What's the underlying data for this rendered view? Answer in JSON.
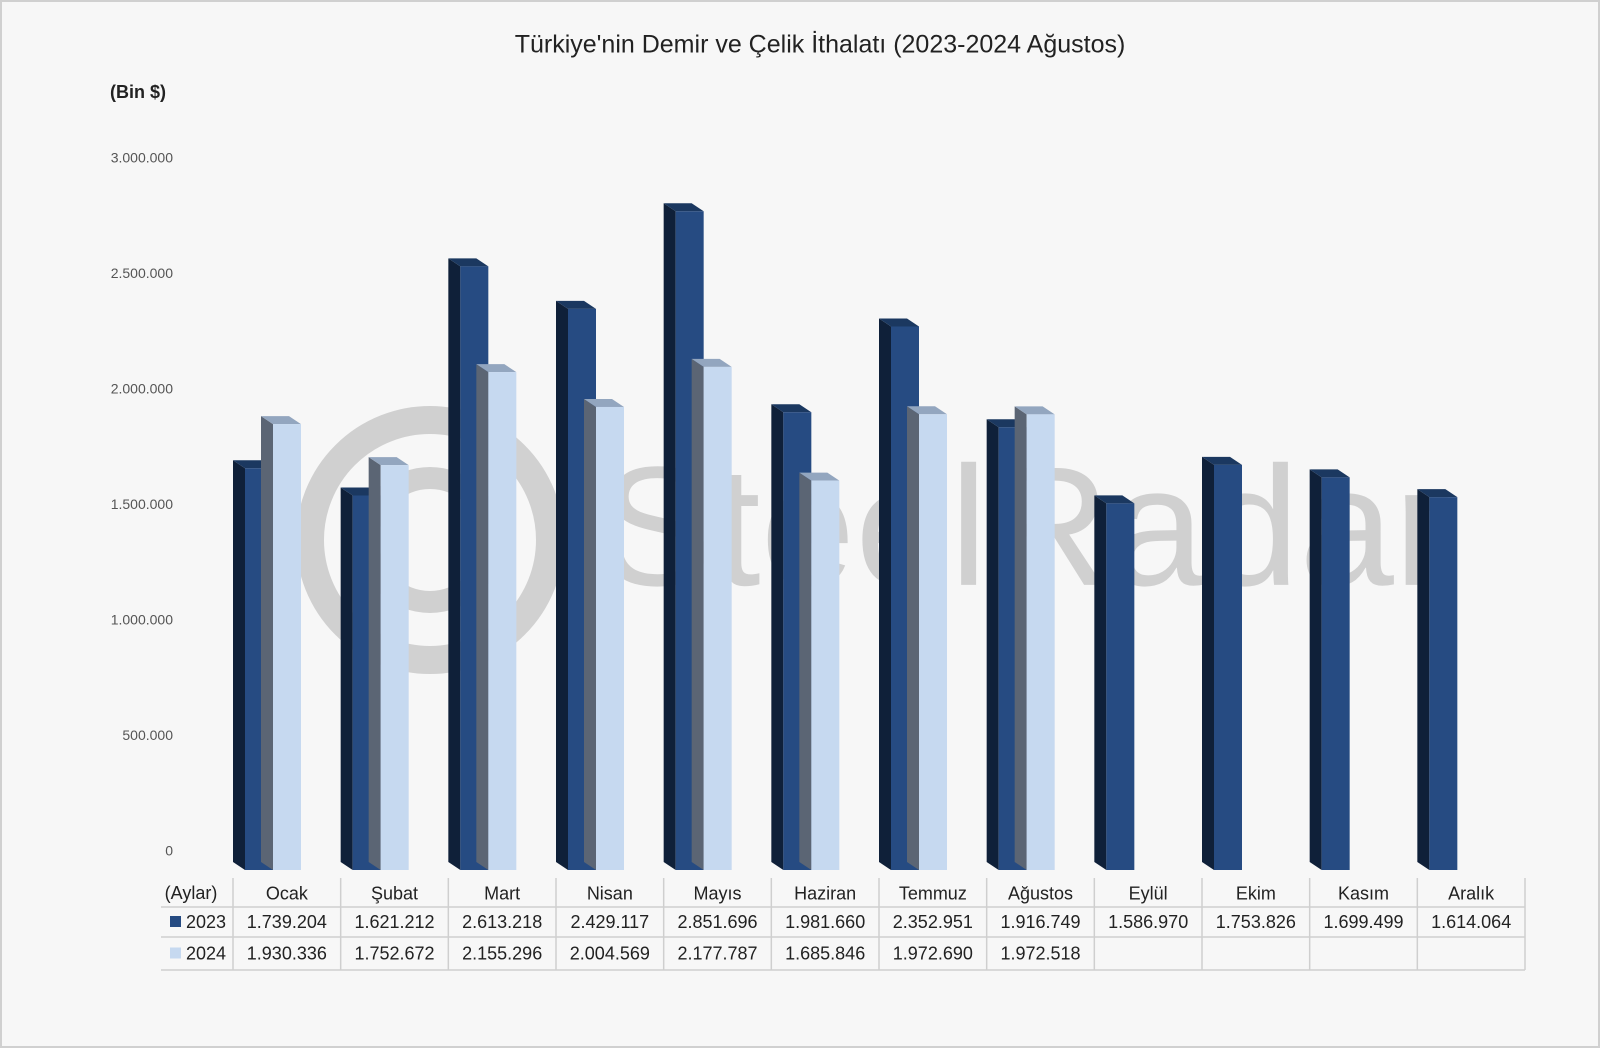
{
  "chart_data": {
    "type": "bar3d",
    "title": "Türkiye'nin Demir ve Çelik İthalatı (2023-2024 Ağustos)",
    "y_label": "(Bin $)",
    "x_label": "(Aylar)",
    "watermark": "SteelRadar",
    "categories": [
      "Ocak",
      "Şubat",
      "Mart",
      "Nisan",
      "Mayıs",
      "Haziran",
      "Temmuz",
      "Ağustos",
      "Eylül",
      "Ekim",
      "Kasım",
      "Aralık"
    ],
    "series": [
      {
        "name": "2023",
        "color": "#264b82",
        "values": [
          1739204,
          1621212,
          2613218,
          2429117,
          2851696,
          1981660,
          2352951,
          1916749,
          1586970,
          1753826,
          1699499,
          1614064
        ],
        "value_labels": [
          "1.739.204",
          "1.621.212",
          "2.613.218",
          "2.429.117",
          "2.851.696",
          "1.981.660",
          "2.352.951",
          "1.916.749",
          "1.586.970",
          "1.753.826",
          "1.699.499",
          "1.614.064"
        ]
      },
      {
        "name": "2024",
        "color": "#c6d9f0",
        "values": [
          1930336,
          1752672,
          2155296,
          2004569,
          2177787,
          1685846,
          1972690,
          1972518,
          null,
          null,
          null,
          null
        ],
        "value_labels": [
          "1.930.336",
          "1.752.672",
          "2.155.296",
          "2.004.569",
          "2.177.787",
          "1.685.846",
          "1.972.690",
          "1.972.518",
          null,
          null,
          null,
          null
        ]
      }
    ],
    "ylim": [
      0,
      3000000
    ],
    "yticks": [
      0,
      {
        "value": 500000,
        "label": "500.000"
      },
      {
        "value": 1000000,
        "label": "1.000.000"
      },
      {
        "value": 1500000,
        "label": "1.500.000"
      },
      {
        "value": 2000000,
        "label": "2.000.000"
      },
      {
        "value": 2500000,
        "label": "2.500.000"
      },
      {
        "value": 3000000,
        "label": "3.000.000"
      }
    ],
    "grid": false
  }
}
